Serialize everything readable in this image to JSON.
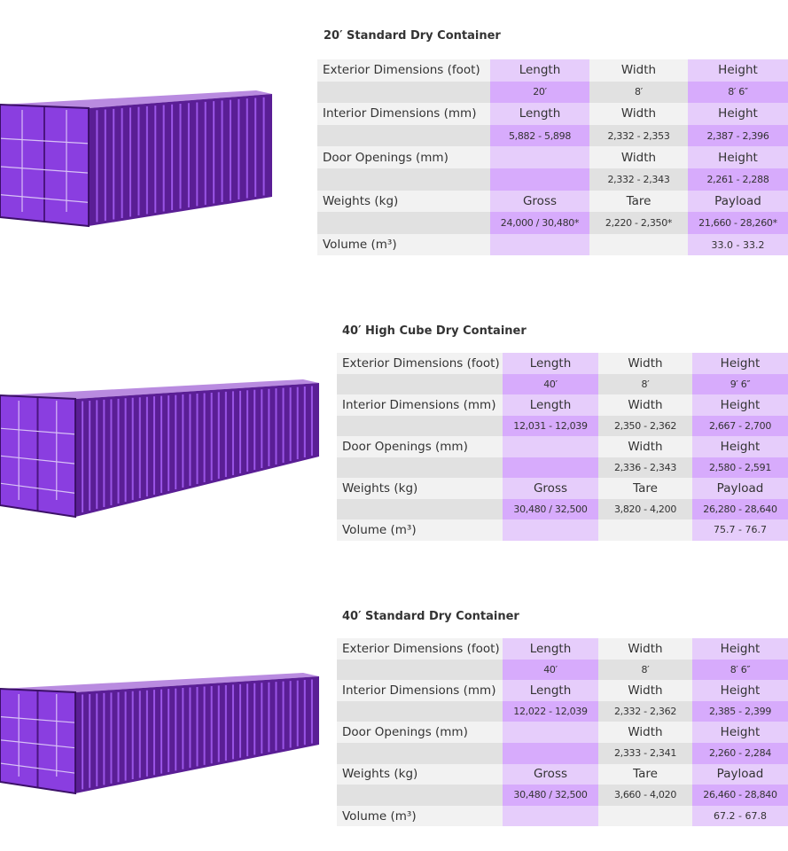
{
  "sections": [
    {
      "title": "20′ Standard Dry Container",
      "rows": [
        [
          "Exterior Dimensions (foot)",
          "Length",
          "Width",
          "Height"
        ],
        [
          null,
          "20′",
          "8′",
          "8′ 6″"
        ],
        [
          "Interior Dimensions (mm)",
          "Length",
          "Width",
          "Height"
        ],
        [
          null,
          "5,882 - 5,898",
          "2,332 - 2,353",
          "2,387 - 2,396"
        ],
        [
          "Door Openings (mm)",
          null,
          "Width",
          "Height"
        ],
        [
          null,
          null,
          "2,332 - 2,343",
          "2,261 - 2,288"
        ],
        [
          "Weights (kg)",
          "Gross",
          "Tare",
          "Payload"
        ],
        [
          null,
          "24,000 / 30,480*",
          "2,220 - 2,350*",
          "21,660 - 28,260*"
        ],
        [
          "Volume (m³)",
          null,
          null,
          "33.0 - 33.2"
        ]
      ]
    },
    {
      "title": "40′ High Cube Dry Container",
      "rows": [
        [
          "Exterior Dimensions (foot)",
          "Length",
          "Width",
          "Height"
        ],
        [
          null,
          "40′",
          "8′",
          "9′ 6″"
        ],
        [
          "Interior Dimensions (mm)",
          "Length",
          "Width",
          "Height"
        ],
        [
          null,
          "12,031 - 12,039",
          "2,350 - 2,362",
          "2,667 - 2,700"
        ],
        [
          "Door Openings (mm)",
          null,
          "Width",
          "Height"
        ],
        [
          null,
          null,
          "2,336 - 2,343",
          "2,580 - 2,591"
        ],
        [
          "Weights (kg)",
          "Gross",
          "Tare",
          "Payload"
        ],
        [
          null,
          "30,480 / 32,500",
          "3,820 - 4,200",
          "26,280 - 28,640"
        ],
        [
          "Volume (m³)",
          null,
          null,
          "75.7 - 76.7"
        ]
      ]
    },
    {
      "title": "40′ Standard Dry Container",
      "rows": [
        [
          "Exterior Dimensions (foot)",
          "Length",
          "Width",
          "Height"
        ],
        [
          null,
          "40′",
          "8′",
          "8′ 6″"
        ],
        [
          "Interior Dimensions (mm)",
          "Length",
          "Width",
          "Height"
        ],
        [
          null,
          "12,022 - 12,039",
          "2,332 - 2,362",
          "2,385 - 2,399"
        ],
        [
          "Door Openings (mm)",
          null,
          "Width",
          "Height"
        ],
        [
          null,
          null,
          "2,333 - 2,341",
          "2,260 - 2,284"
        ],
        [
          "Weights (kg)",
          "Gross",
          "Tare",
          "Payload"
        ],
        [
          null,
          "30,480 / 32,500",
          "3,660 - 4,020",
          "26,460 - 28,840"
        ],
        [
          "Volume (m³)",
          null,
          null,
          "67.2 - 67.8"
        ]
      ]
    }
  ]
}
